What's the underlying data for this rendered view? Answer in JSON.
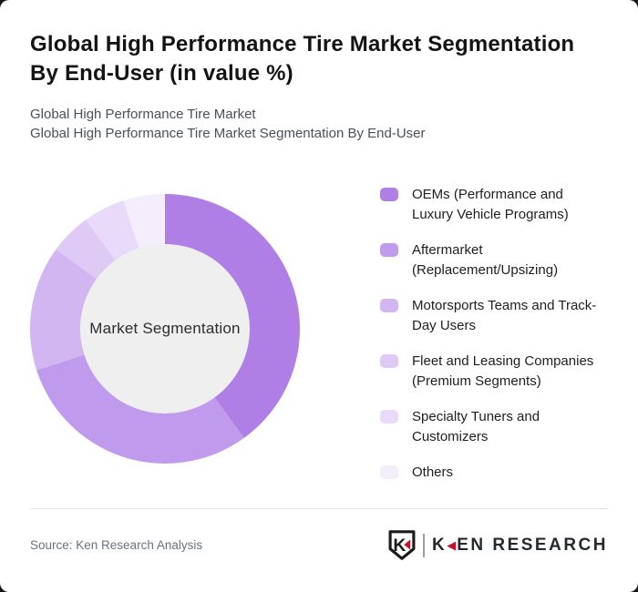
{
  "page": {
    "background_color": "#161616",
    "card_background_color": "#ffffff"
  },
  "header": {
    "title": "Global High Performance Tire Market Segmentation By End-User (in value %)",
    "subtitles": [
      "Global High Performance Tire Market",
      "Global High Performance Tire Market Segmentation By End-User"
    ]
  },
  "chart_data": {
    "type": "pie",
    "variant": "donut",
    "title": "Global High Performance Tire Market Segmentation By End-User (in value %)",
    "unit": "value %",
    "center_label": "Market Segmentation",
    "legend_position": "right",
    "start_angle_deg": 0,
    "direction": "clockwise",
    "categories": [
      "OEMs (Performance and Luxury Vehicle Programs)",
      "Aftermarket (Replacement/Upsizing)",
      "Motorsports Teams and Track-Day Users",
      "Fleet and Leasing Companies (Premium Segments)",
      "Specialty Tuners and Customizers",
      "Others"
    ],
    "values": [
      40,
      30,
      15,
      5,
      5,
      5
    ],
    "colors": [
      "#b07fe6",
      "#c09aec",
      "#d2b6f1",
      "#dfc9f5",
      "#e9daf9",
      "#f3edfc"
    ],
    "inner_circle_color": "#efeff0"
  },
  "footer": {
    "source": "Source: Ken Research Analysis",
    "logo": {
      "shield_icon": "ken-research-shield-icon",
      "text_k": "K",
      "triangle_glyph": "◀",
      "text_rest": "EN RESEARCH",
      "accent_color": "#c8102e",
      "text_color": "#26292e"
    }
  }
}
